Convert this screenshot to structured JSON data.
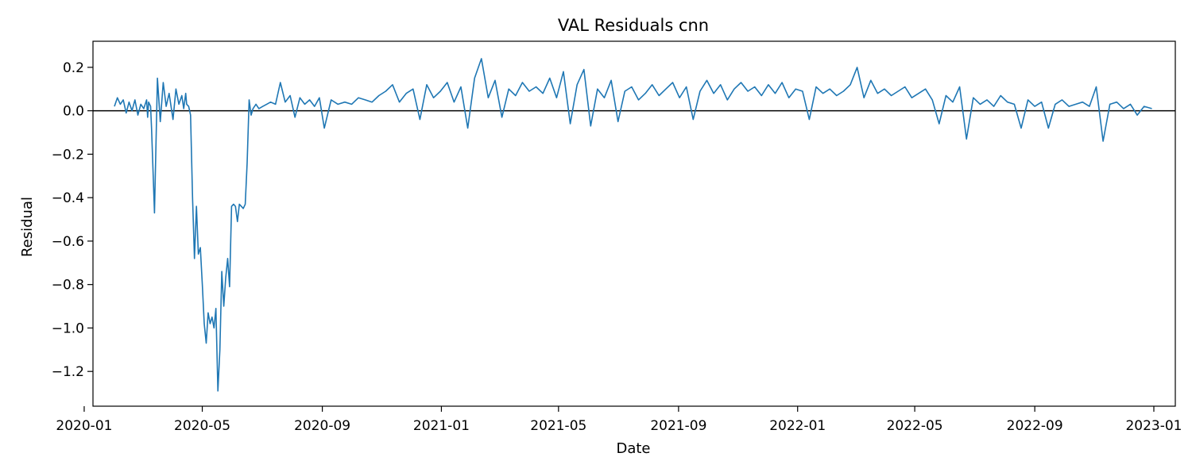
{
  "chart_data": {
    "type": "line",
    "title": "VAL Residuals cnn",
    "xlabel": "Date",
    "ylabel": "Residual",
    "x_axis_type": "date",
    "xlim": [
      "2020-01-10",
      "2023-01-23"
    ],
    "ylim": [
      -1.36,
      0.32
    ],
    "xticks": [
      "2020-01",
      "2020-05",
      "2020-09",
      "2021-01",
      "2021-05",
      "2021-09",
      "2022-01",
      "2022-05",
      "2022-09",
      "2023-01"
    ],
    "yticks": [
      0.2,
      0.0,
      -0.2,
      -0.4,
      -0.6,
      -0.8,
      -1.0,
      -1.2
    ],
    "ytick_labels": [
      "0.2",
      "0.0",
      "−0.2",
      "−0.4",
      "−0.6",
      "−0.8",
      "−1.0",
      "−1.2"
    ],
    "reference_line_y": 0.0,
    "grid": false,
    "legend": "none",
    "line_color": "#1f77b4",
    "series": [
      {
        "x": [
          "2020-02-01",
          "2020-02-04",
          "2020-02-07",
          "2020-02-10",
          "2020-02-13",
          "2020-02-16",
          "2020-02-19",
          "2020-02-22",
          "2020-02-25",
          "2020-02-28",
          "2020-03-02",
          "2020-03-05",
          "2020-03-06",
          "2020-03-07",
          "2020-03-09",
          "2020-03-10",
          "2020-03-13",
          "2020-03-16",
          "2020-03-19",
          "2020-03-22",
          "2020-03-25",
          "2020-03-28",
          "2020-04-01",
          "2020-04-04",
          "2020-04-07",
          "2020-04-10",
          "2020-04-12",
          "2020-04-14",
          "2020-04-15",
          "2020-04-17",
          "2020-04-19",
          "2020-04-21",
          "2020-04-23",
          "2020-04-25",
          "2020-04-27",
          "2020-04-29",
          "2020-05-01",
          "2020-05-03",
          "2020-05-05",
          "2020-05-07",
          "2020-05-09",
          "2020-05-11",
          "2020-05-13",
          "2020-05-15",
          "2020-05-17",
          "2020-05-19",
          "2020-05-21",
          "2020-05-23",
          "2020-05-25",
          "2020-05-27",
          "2020-05-29",
          "2020-05-31",
          "2020-06-02",
          "2020-06-04",
          "2020-06-06",
          "2020-06-08",
          "2020-06-10",
          "2020-06-12",
          "2020-06-14",
          "2020-06-16",
          "2020-06-18",
          "2020-06-20",
          "2020-06-22",
          "2020-06-25",
          "2020-06-28",
          "2020-07-02",
          "2020-07-06",
          "2020-07-10",
          "2020-07-15",
          "2020-07-20",
          "2020-07-25",
          "2020-07-30",
          "2020-08-04",
          "2020-08-09",
          "2020-08-14",
          "2020-08-19",
          "2020-08-24",
          "2020-08-29",
          "2020-09-03",
          "2020-09-10",
          "2020-09-17",
          "2020-09-24",
          "2020-10-01",
          "2020-10-08",
          "2020-10-15",
          "2020-10-22",
          "2020-10-29",
          "2020-11-05",
          "2020-11-12",
          "2020-11-19",
          "2020-11-26",
          "2020-12-03",
          "2020-12-10",
          "2020-12-17",
          "2020-12-24",
          "2020-12-31",
          "2021-01-07",
          "2021-01-14",
          "2021-01-21",
          "2021-01-28",
          "2021-02-04",
          "2021-02-11",
          "2021-02-18",
          "2021-02-25",
          "2021-03-04",
          "2021-03-11",
          "2021-03-18",
          "2021-03-25",
          "2021-04-01",
          "2021-04-08",
          "2021-04-15",
          "2021-04-22",
          "2021-04-29",
          "2021-05-06",
          "2021-05-13",
          "2021-05-20",
          "2021-05-27",
          "2021-06-03",
          "2021-06-10",
          "2021-06-17",
          "2021-06-24",
          "2021-07-01",
          "2021-07-08",
          "2021-07-15",
          "2021-07-22",
          "2021-07-29",
          "2021-08-05",
          "2021-08-12",
          "2021-08-19",
          "2021-08-26",
          "2021-09-02",
          "2021-09-09",
          "2021-09-16",
          "2021-09-23",
          "2021-09-30",
          "2021-10-07",
          "2021-10-14",
          "2021-10-21",
          "2021-10-28",
          "2021-11-04",
          "2021-11-11",
          "2021-11-18",
          "2021-11-25",
          "2021-12-02",
          "2021-12-09",
          "2021-12-16",
          "2021-12-23",
          "2021-12-30",
          "2022-01-06",
          "2022-01-13",
          "2022-01-20",
          "2022-01-27",
          "2022-02-03",
          "2022-02-10",
          "2022-02-17",
          "2022-02-24",
          "2022-03-03",
          "2022-03-10",
          "2022-03-17",
          "2022-03-24",
          "2022-03-31",
          "2022-04-07",
          "2022-04-14",
          "2022-04-21",
          "2022-04-28",
          "2022-05-05",
          "2022-05-12",
          "2022-05-19",
          "2022-05-26",
          "2022-06-02",
          "2022-06-09",
          "2022-06-16",
          "2022-06-23",
          "2022-06-30",
          "2022-07-07",
          "2022-07-14",
          "2022-07-21",
          "2022-07-28",
          "2022-08-04",
          "2022-08-11",
          "2022-08-18",
          "2022-08-25",
          "2022-09-01",
          "2022-09-08",
          "2022-09-15",
          "2022-09-22",
          "2022-09-29",
          "2022-10-06",
          "2022-10-13",
          "2022-10-20",
          "2022-10-27",
          "2022-11-03",
          "2022-11-10",
          "2022-11-17",
          "2022-11-24",
          "2022-12-01",
          "2022-12-08",
          "2022-12-15",
          "2022-12-22",
          "2022-12-30"
        ],
        "y": [
          0.02,
          0.06,
          0.03,
          0.05,
          -0.01,
          0.04,
          0.0,
          0.05,
          -0.02,
          0.03,
          0.01,
          0.05,
          -0.03,
          0.04,
          0.02,
          -0.08,
          -0.47,
          0.15,
          -0.05,
          0.13,
          0.02,
          0.08,
          -0.04,
          0.1,
          0.03,
          0.07,
          0.01,
          0.08,
          0.03,
          0.02,
          -0.02,
          -0.4,
          -0.68,
          -0.44,
          -0.66,
          -0.63,
          -0.8,
          -0.98,
          -1.07,
          -0.93,
          -0.98,
          -0.95,
          -1.0,
          -0.91,
          -1.29,
          -1.1,
          -0.74,
          -0.9,
          -0.77,
          -0.68,
          -0.81,
          -0.44,
          -0.43,
          -0.44,
          -0.51,
          -0.43,
          -0.44,
          -0.45,
          -0.43,
          -0.24,
          0.05,
          -0.02,
          0.01,
          0.03,
          0.01,
          0.02,
          0.03,
          0.04,
          0.03,
          0.13,
          0.04,
          0.07,
          -0.03,
          0.06,
          0.03,
          0.05,
          0.02,
          0.06,
          -0.08,
          0.05,
          0.03,
          0.04,
          0.03,
          0.06,
          0.05,
          0.04,
          0.07,
          0.09,
          0.12,
          0.04,
          0.08,
          0.1,
          -0.04,
          0.12,
          0.06,
          0.09,
          0.13,
          0.04,
          0.11,
          -0.08,
          0.15,
          0.24,
          0.06,
          0.14,
          -0.03,
          0.1,
          0.07,
          0.13,
          0.09,
          0.11,
          0.08,
          0.15,
          0.06,
          0.18,
          -0.06,
          0.12,
          0.19,
          -0.07,
          0.1,
          0.06,
          0.14,
          -0.05,
          0.09,
          0.11,
          0.05,
          0.08,
          0.12,
          0.07,
          0.1,
          0.13,
          0.06,
          0.11,
          -0.04,
          0.09,
          0.14,
          0.08,
          0.12,
          0.05,
          0.1,
          0.13,
          0.09,
          0.11,
          0.07,
          0.12,
          0.08,
          0.13,
          0.06,
          0.1,
          0.09,
          -0.04,
          0.11,
          0.08,
          0.1,
          0.07,
          0.09,
          0.12,
          0.2,
          0.06,
          0.14,
          0.08,
          0.1,
          0.07,
          0.09,
          0.11,
          0.06,
          0.08,
          0.1,
          0.05,
          -0.06,
          0.07,
          0.04,
          0.11,
          -0.13,
          0.06,
          0.03,
          0.05,
          0.02,
          0.07,
          0.04,
          0.03,
          -0.08,
          0.05,
          0.02,
          0.04,
          -0.08,
          0.03,
          0.05,
          0.02,
          0.03,
          0.04,
          0.02,
          0.11,
          -0.14,
          0.03,
          0.04,
          0.01,
          0.03,
          -0.02,
          0.02,
          0.01
        ]
      }
    ]
  }
}
